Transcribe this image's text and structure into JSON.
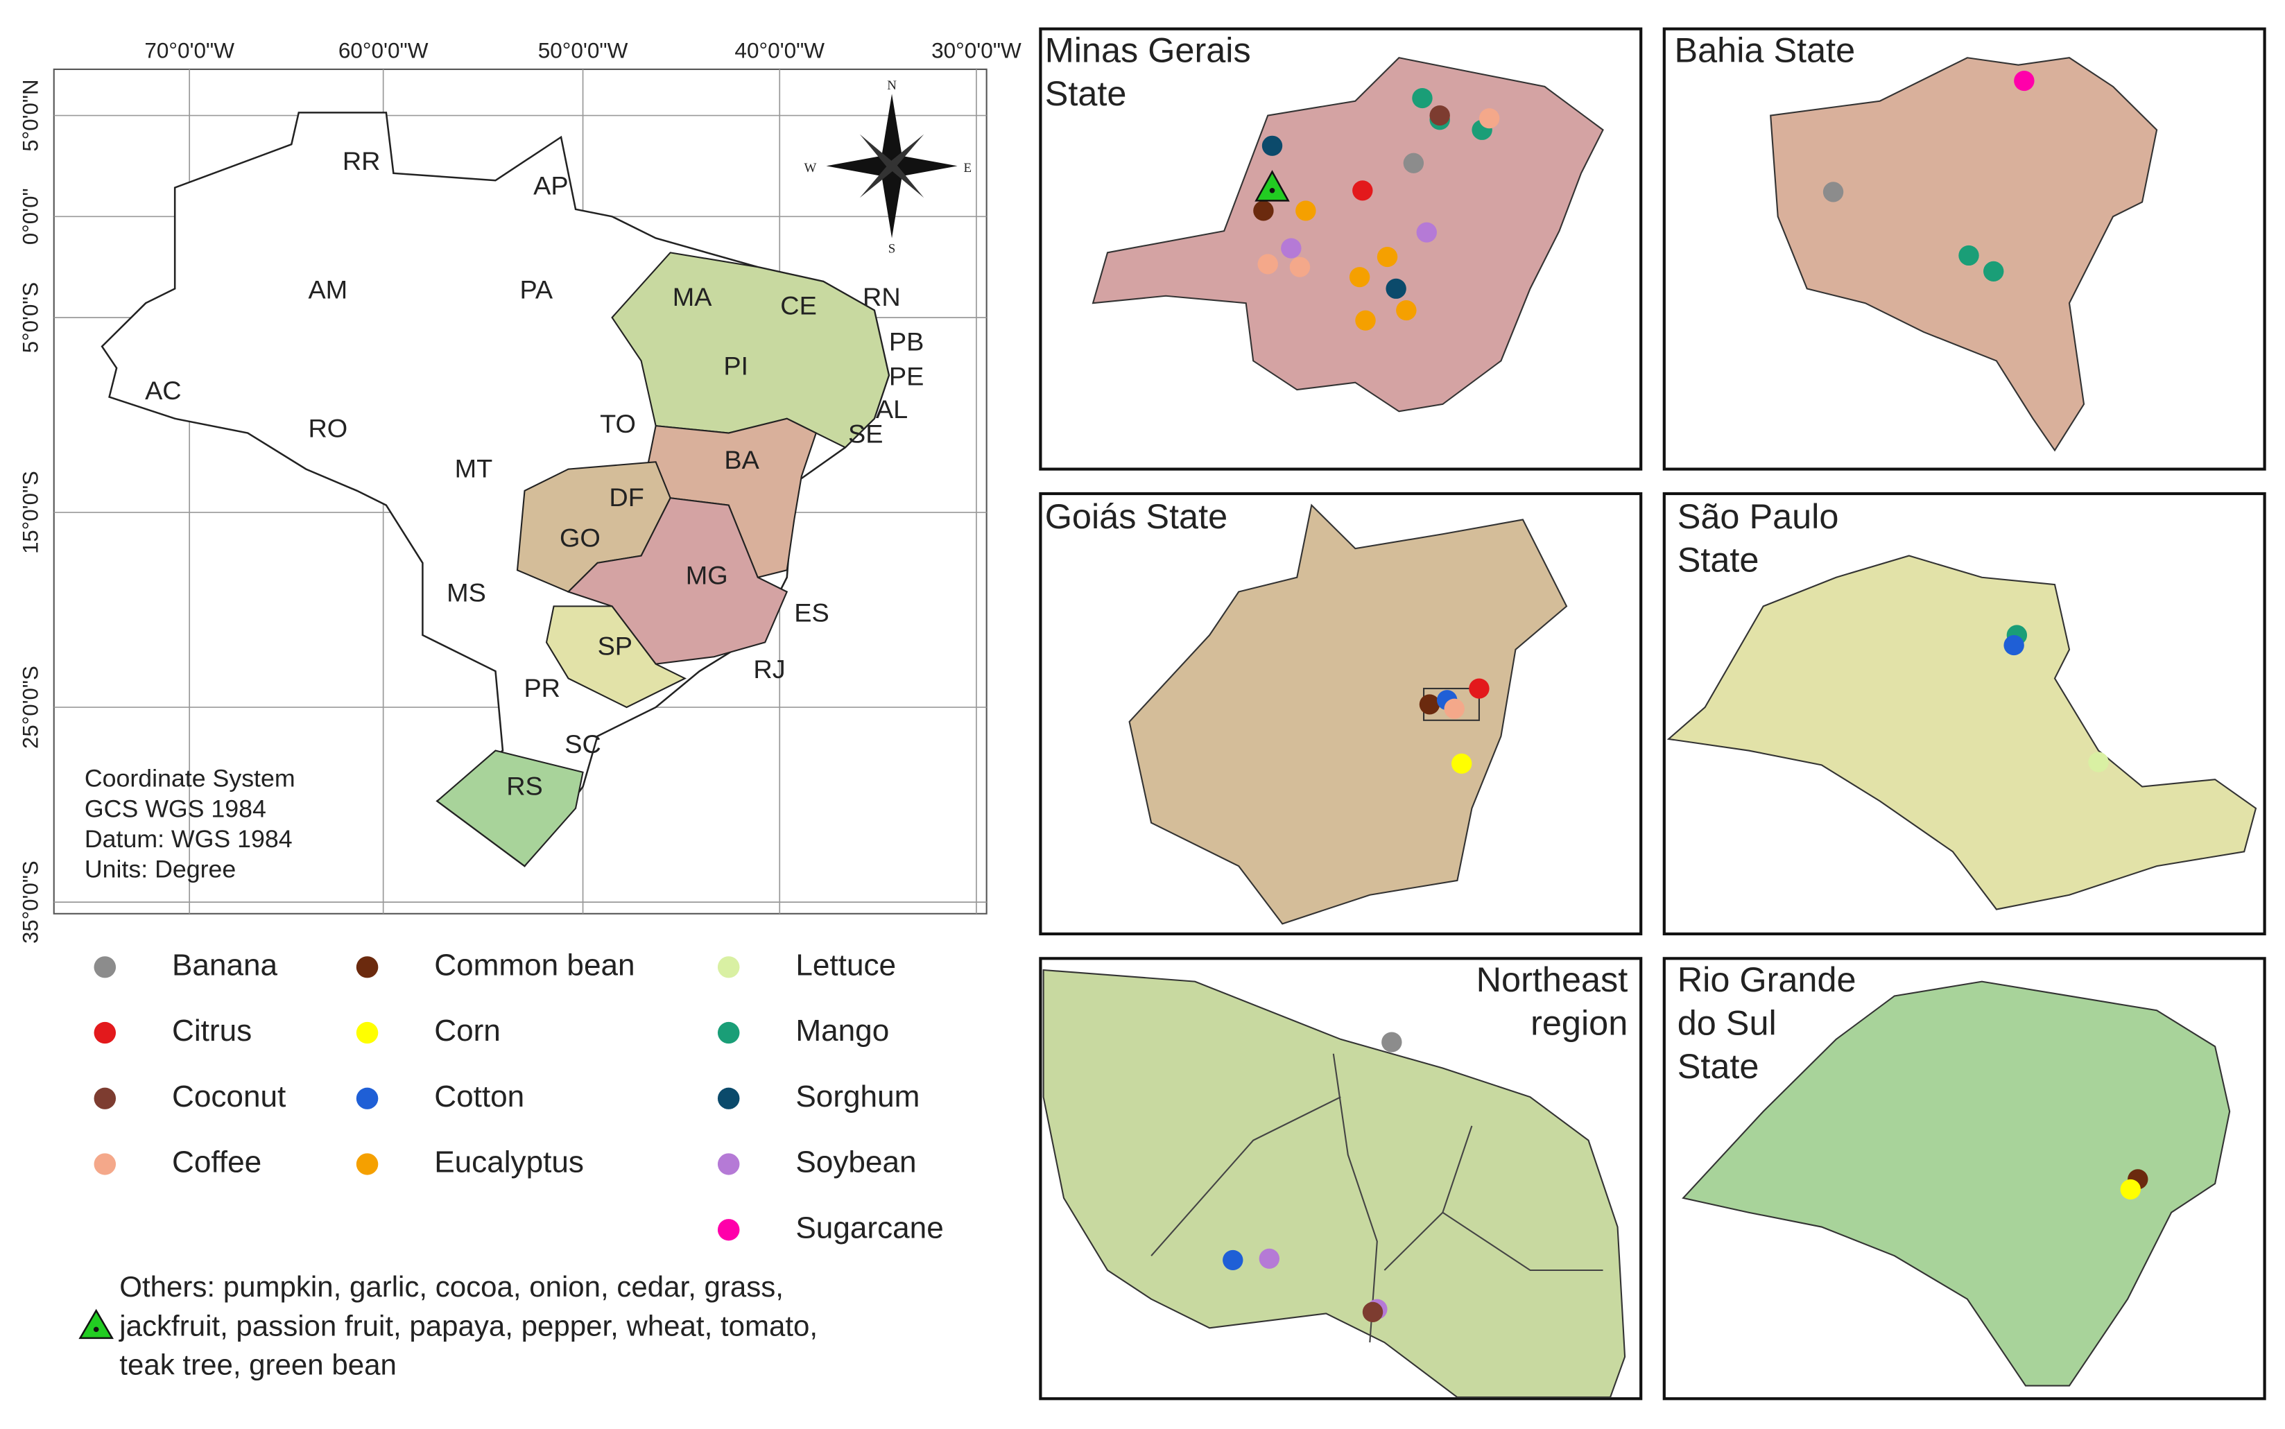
{
  "map": {
    "longitude_labels": [
      "70°0'0\"W",
      "60°0'0\"W",
      "50°0'0\"W",
      "40°0'0\"W",
      "30°0'0\"W"
    ],
    "latitude_labels": [
      "5°0'0\"N",
      "0°0'0\"",
      "5°0'0\"S",
      "15°0'0\"S",
      "25°0'0\"S",
      "35°0'0\"S"
    ],
    "state_labels": [
      "RR",
      "AP",
      "AM",
      "PA",
      "MA",
      "CE",
      "RN",
      "PB",
      "PE",
      "PI",
      "AC",
      "RO",
      "TO",
      "AL",
      "SE",
      "BA",
      "MT",
      "DF",
      "GO",
      "MS",
      "MG",
      "ES",
      "SP",
      "RJ",
      "PR",
      "SC",
      "RS"
    ],
    "compass": [
      "N",
      "E",
      "S",
      "W"
    ],
    "coordinate_system": [
      "Coordinate System",
      "GCS WGS 1984",
      "Datum: WGS 1984",
      "Units: Degree"
    ]
  },
  "legend": {
    "items": [
      {
        "label": "Banana",
        "color": "#8c8c8c"
      },
      {
        "label": "Citrus",
        "color": "#e3191c"
      },
      {
        "label": "Coconut",
        "color": "#7d3c30"
      },
      {
        "label": "Coffee",
        "color": "#f4a88a"
      },
      {
        "label": "Common bean",
        "color": "#6b2a0e"
      },
      {
        "label": "Corn",
        "color": "#ffff00"
      },
      {
        "label": "Cotton",
        "color": "#1f5fd6"
      },
      {
        "label": "Eucalyptus",
        "color": "#f5a000"
      },
      {
        "label": "Lettuce",
        "color": "#d9f0a3"
      },
      {
        "label": "Mango",
        "color": "#1a9e77"
      },
      {
        "label": "Sorghum",
        "color": "#0b4a6b"
      },
      {
        "label": "Soybean",
        "color": "#b57ad6"
      },
      {
        "label": "Sugarcane",
        "color": "#ff00aa"
      }
    ],
    "others": [
      "Others: pumpkin, garlic, cocoa, onion, cedar, grass,",
      "jackfruit, passion fruit, papaya, pepper, wheat, tomato,",
      "teak tree, green bean"
    ],
    "others_color": "#22cc22"
  },
  "panels": [
    {
      "title": [
        "Minas Gerais",
        "State"
      ],
      "color": "#d4a3a3"
    },
    {
      "title": [
        "Bahia State"
      ],
      "color": "#d9b09b"
    },
    {
      "title": [
        "Goiás State"
      ],
      "color": "#d4bd99"
    },
    {
      "title": [
        "São Paulo",
        "State"
      ],
      "color": "#e2e2a8"
    },
    {
      "title": [
        "Northeast",
        "region"
      ],
      "color": "#c8d9a0"
    },
    {
      "title": [
        "Rio Grande",
        "do Sul",
        "State"
      ],
      "color": "#a8d39a"
    }
  ]
}
